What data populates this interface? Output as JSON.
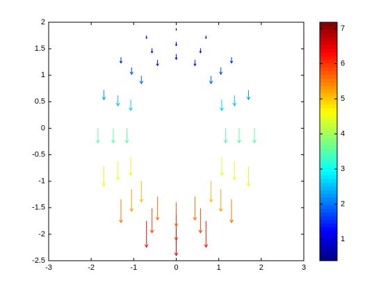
{
  "chart_data": {
    "type": "quiver",
    "x": [
      1.16,
      1.07,
      0.82,
      0.44,
      0,
      -0.44,
      -0.82,
      -1.07,
      -1.16,
      -1.07,
      -0.82,
      -0.44,
      0,
      0.44,
      0.82,
      1.07,
      1.48,
      1.37,
      1.05,
      0.57,
      0,
      -0.57,
      -1.05,
      -1.37,
      -1.48,
      -1.37,
      -1.05,
      -0.57,
      0,
      0.57,
      1.05,
      1.37,
      1.84,
      1.7,
      1.3,
      0.7,
      0,
      -0.7,
      -1.3,
      -1.7,
      -1.84,
      -1.7,
      -1.3,
      -0.7,
      0,
      0.7,
      1.3,
      1.7
    ],
    "y": [
      0,
      0.54,
      0.99,
      1.29,
      1.4,
      1.29,
      0.99,
      0.54,
      0,
      -0.54,
      -0.99,
      -1.29,
      -1.4,
      -1.29,
      -0.99,
      -0.54,
      0,
      0.62,
      1.15,
      1.51,
      1.63,
      1.51,
      1.15,
      0.62,
      0,
      -0.62,
      -1.15,
      -1.51,
      -1.63,
      -1.51,
      -1.15,
      -0.62,
      0,
      0.72,
      1.34,
      1.75,
      1.89,
      1.75,
      1.34,
      0.72,
      0,
      -0.72,
      -1.34,
      -1.75,
      -1.89,
      -1.75,
      -1.34,
      -0.72
    ],
    "v": [
      -3.5,
      -2.6,
      -1.9,
      -1.4,
      -1.3,
      -1.4,
      -1.9,
      -2.6,
      -3.5,
      -4.4,
      -5.1,
      -5.6,
      -5.7,
      -5.6,
      -5.1,
      -4.4,
      -3.5,
      -2.5,
      -1.7,
      -1.1,
      -0.9,
      -1.1,
      -1.7,
      -2.5,
      -3.5,
      -4.5,
      -5.3,
      -5.9,
      -6.1,
      -5.9,
      -5.3,
      -4.5,
      -3.5,
      -2.3,
      -1.4,
      -0.7,
      -0.5,
      -0.7,
      -1.4,
      -2.3,
      -3.5,
      -4.7,
      -5.6,
      -6.3,
      -6.5,
      -6.3,
      -5.6,
      -4.7
    ],
    "xlim": [
      -3,
      3
    ],
    "xticks": [
      -3,
      -2,
      -1,
      0,
      1,
      2,
      3
    ],
    "ylim": [
      -2.5,
      2
    ],
    "yticks": [
      -2.5,
      -2,
      -1.5,
      -1,
      -0.5,
      0,
      0.5,
      1,
      1.5,
      2
    ],
    "colormap": "jet",
    "clim": [
      0.39,
      7.18
    ],
    "colorbar_ticks": [
      1,
      2,
      3,
      4,
      5,
      6,
      7
    ]
  }
}
